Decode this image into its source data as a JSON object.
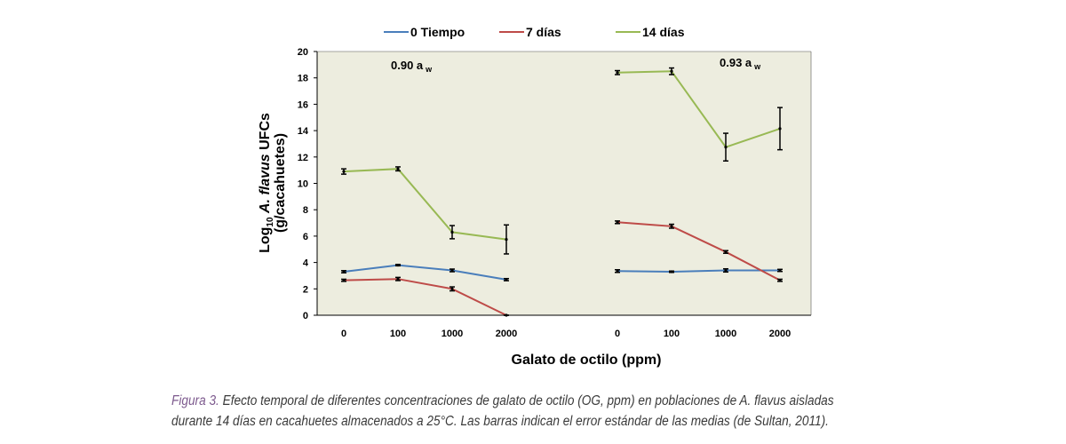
{
  "chart_data": {
    "type": "line",
    "ylabel_line1_prefix": "Log",
    "ylabel_line1_subscript": "10",
    "ylabel_line1_italic": "A. flavus",
    "ylabel_line1_suffix": "UFCs",
    "ylabel_line2": "(g/cacahuetes)",
    "xlabel": "Galato de octilo (ppm)",
    "ylim": [
      0,
      20
    ],
    "yticks": [
      "0",
      "2",
      "4",
      "6",
      "8",
      "10",
      "12",
      "14",
      "16",
      "18",
      "20"
    ],
    "grid": false,
    "legend_position": "top",
    "plot_background": "#ededdf",
    "panels": [
      {
        "label": "0.90 a",
        "label_subscript": "w",
        "categories": [
          "0",
          "100",
          "1000",
          "2000"
        ],
        "series": [
          {
            "name": "0 Tiempo",
            "color": "#4a7ebb",
            "values": [
              3.3,
              3.8,
              3.4,
              2.7
            ],
            "errors": [
              0.08,
              0.05,
              0.1,
              0.08
            ]
          },
          {
            "name": "7 días",
            "color": "#be4b48",
            "values": [
              2.65,
              2.75,
              2.0,
              0.0
            ],
            "errors": [
              0.08,
              0.12,
              0.15,
              0.0
            ]
          },
          {
            "name": "14 días",
            "color": "#98b954",
            "values": [
              10.9,
              11.1,
              6.3,
              5.75
            ],
            "errors": [
              0.2,
              0.15,
              0.5,
              1.1
            ]
          }
        ]
      },
      {
        "label": "0.93 a",
        "label_subscript": "w",
        "categories": [
          "0",
          "100",
          "1000",
          "2000"
        ],
        "series": [
          {
            "name": "0 Tiempo",
            "color": "#4a7ebb",
            "values": [
              3.35,
              3.3,
              3.4,
              3.4
            ],
            "errors": [
              0.1,
              0.05,
              0.12,
              0.08
            ]
          },
          {
            "name": "7 días",
            "color": "#be4b48",
            "values": [
              7.05,
              6.75,
              4.8,
              2.65
            ],
            "errors": [
              0.1,
              0.15,
              0.1,
              0.08
            ]
          },
          {
            "name": "14 días",
            "color": "#98b954",
            "values": [
              18.4,
              18.5,
              12.75,
              14.15
            ],
            "errors": [
              0.15,
              0.25,
              1.05,
              1.6
            ]
          }
        ]
      }
    ]
  },
  "caption": {
    "figure_label": "Figura 3.",
    "text": " Efecto temporal de diferentes concentraciones de galato de octilo (OG, ppm) en poblaciones de A. flavus aisladas durante 14 días en cacahuetes almacenados a 25°C. Las barras indican el error estándar de las medias (de Sultan, 2011)."
  }
}
